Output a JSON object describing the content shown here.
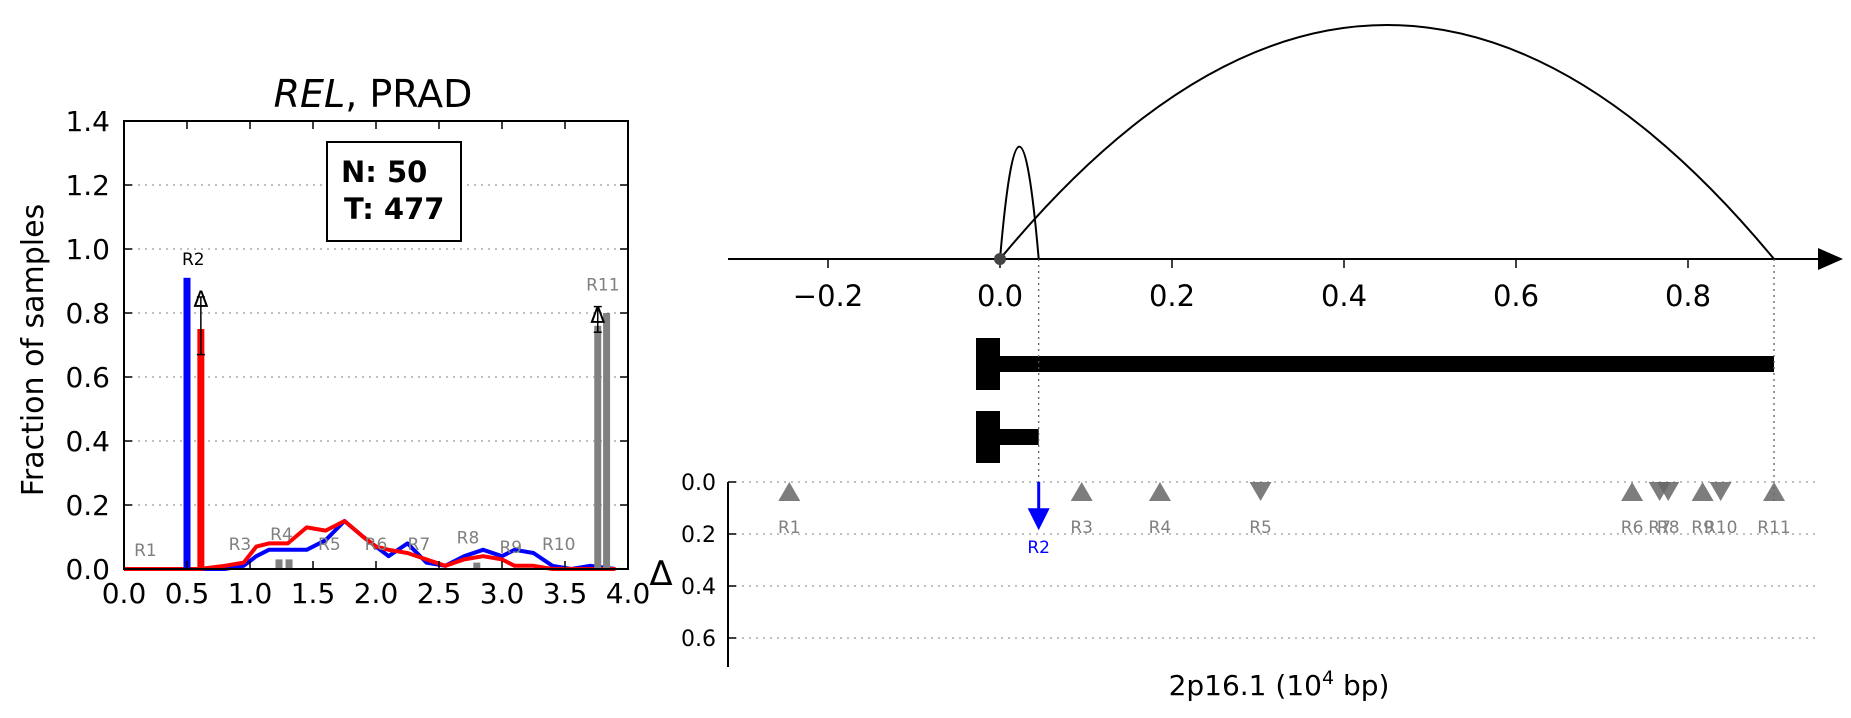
{
  "chart_data": [
    {
      "type": "line",
      "title_italic": "REL",
      "title_rest": ", PRAD",
      "ylabel": "Fraction of samples",
      "xlabel": "",
      "xlim": [
        0.0,
        4.0
      ],
      "ylim": [
        0.0,
        1.4
      ],
      "xticks": [
        "0.0",
        "0.5",
        "1.0",
        "1.5",
        "2.0",
        "2.5",
        "3.0",
        "3.5",
        "4.0"
      ],
      "yticks": [
        "0.0",
        "0.2",
        "0.4",
        "0.6",
        "0.8",
        "1.0",
        "1.2",
        "1.4"
      ],
      "grid": "horizontal dotted",
      "counts_box": {
        "line1": "N: 50",
        "line2": "T: 477"
      },
      "colors": {
        "normal": "#0000ff",
        "tumor": "#ff0000",
        "other": "#808080",
        "highlight_label": "#000000"
      },
      "bars": [
        {
          "x": 0.5,
          "value": 0.91,
          "color": "#0000ff"
        },
        {
          "x": 0.61,
          "value": 0.75,
          "color": "#ff0000",
          "err": [
            0.67,
            0.85
          ]
        },
        {
          "x": 1.23,
          "value": 0.03,
          "color": "#808080"
        },
        {
          "x": 1.31,
          "value": 0.03,
          "color": "#808080"
        },
        {
          "x": 2.8,
          "value": 0.02,
          "color": "#808080"
        },
        {
          "x": 3.76,
          "value": 0.76,
          "color": "#808080",
          "err": [
            0.74,
            0.82
          ]
        },
        {
          "x": 3.83,
          "value": 0.8,
          "color": "#808080"
        }
      ],
      "markers": [
        {
          "x": 0.61,
          "y": 0.85,
          "label": "Δ"
        },
        {
          "x": 3.76,
          "y": 0.8,
          "label": "Δ"
        }
      ],
      "series": [
        {
          "color": "#0000ff",
          "x": [
            0.0,
            0.45,
            0.6,
            0.8,
            0.95,
            1.05,
            1.15,
            1.3,
            1.45,
            1.6,
            1.75,
            1.9,
            2.0,
            2.1,
            2.25,
            2.4,
            2.55,
            2.7,
            2.85,
            3.0,
            3.1,
            3.25,
            3.4,
            3.55,
            3.7,
            3.9
          ],
          "y": [
            0.0,
            0.0,
            0.0,
            0.0,
            0.01,
            0.04,
            0.06,
            0.06,
            0.06,
            0.09,
            0.15,
            0.1,
            0.07,
            0.04,
            0.08,
            0.02,
            0.01,
            0.04,
            0.06,
            0.04,
            0.06,
            0.05,
            0.01,
            0.0,
            0.01,
            0.0
          ]
        },
        {
          "color": "#ff0000",
          "x": [
            0.0,
            0.45,
            0.6,
            0.8,
            0.95,
            1.05,
            1.15,
            1.3,
            1.45,
            1.6,
            1.75,
            1.9,
            2.0,
            2.1,
            2.25,
            2.4,
            2.55,
            2.7,
            2.85,
            3.0,
            3.1,
            3.25,
            3.4,
            3.55,
            3.7,
            3.9
          ],
          "y": [
            0.0,
            0.0,
            0.0,
            0.01,
            0.02,
            0.07,
            0.08,
            0.08,
            0.13,
            0.12,
            0.15,
            0.1,
            0.07,
            0.06,
            0.05,
            0.03,
            0.01,
            0.03,
            0.04,
            0.03,
            0.01,
            0.01,
            0.0,
            0.0,
            0.0,
            0.0
          ]
        }
      ],
      "region_labels": [
        {
          "label": "R1",
          "x": 0.17,
          "y": 0.04,
          "color": "#808080"
        },
        {
          "label": "R2",
          "x": 0.55,
          "y": 0.95,
          "color": "#000000"
        },
        {
          "label": "R3",
          "x": 0.92,
          "y": 0.06,
          "color": "#808080"
        },
        {
          "label": "R4",
          "x": 1.25,
          "y": 0.09,
          "color": "#808080"
        },
        {
          "label": "R5",
          "x": 1.63,
          "y": 0.06,
          "color": "#808080"
        },
        {
          "label": "R6",
          "x": 2.0,
          "y": 0.06,
          "color": "#808080"
        },
        {
          "label": "R7",
          "x": 2.34,
          "y": 0.06,
          "color": "#808080"
        },
        {
          "label": "R8",
          "x": 2.73,
          "y": 0.08,
          "color": "#808080"
        },
        {
          "label": "R9",
          "x": 3.07,
          "y": 0.05,
          "color": "#808080"
        },
        {
          "label": "R10",
          "x": 3.45,
          "y": 0.06,
          "color": "#808080"
        },
        {
          "label": "R11",
          "x": 3.8,
          "y": 0.87,
          "color": "#808080"
        }
      ]
    },
    {
      "type": "scatter",
      "xlabel_main": "2p16.1 (10",
      "xlabel_sup": "4",
      "xlabel_tail": " bp)",
      "xlim": [
        -0.3,
        0.95
      ],
      "xticks": [
        {
          "value": -0.2,
          "label": "−0.2"
        },
        {
          "value": 0.0,
          "label": "0.0"
        },
        {
          "value": 0.2,
          "label": "0.2"
        },
        {
          "value": 0.4,
          "label": "0.4"
        },
        {
          "value": 0.6,
          "label": "0.6"
        },
        {
          "value": 0.8,
          "label": "0.8"
        }
      ],
      "arcs": [
        {
          "from": 0.0,
          "to": 0.045,
          "height": 0.48
        },
        {
          "from": 0.0,
          "to": 0.9,
          "height": 1.0
        }
      ],
      "origin_point": 0.0,
      "transcripts": [
        {
          "start": 0.0,
          "end": 0.9
        },
        {
          "start": 0.0,
          "end": 0.045
        }
      ],
      "delta_ylabel": "Δ",
      "delta_ylim": [
        0.0,
        0.7
      ],
      "delta_yticks": [
        "0.0",
        "0.2",
        "0.4",
        "0.6"
      ],
      "highlight_color": "#0000ff",
      "marker_color": "#666666",
      "markers": [
        {
          "label": "R1",
          "x": -0.245,
          "dir": "up",
          "color": "#666666"
        },
        {
          "label": "R2",
          "x": 0.045,
          "dir": "arrow",
          "value": 0.17,
          "color": "#0000ff"
        },
        {
          "label": "R3",
          "x": 0.095,
          "dir": "up",
          "color": "#666666"
        },
        {
          "label": "R4",
          "x": 0.186,
          "dir": "up",
          "color": "#666666"
        },
        {
          "label": "R5",
          "x": 0.303,
          "dir": "down",
          "color": "#666666"
        },
        {
          "label": "R6",
          "x": 0.735,
          "dir": "up",
          "color": "#666666"
        },
        {
          "label": "R7",
          "x": 0.767,
          "dir": "down",
          "color": "#666666"
        },
        {
          "label": "R8",
          "x": 0.777,
          "dir": "down",
          "color": "#666666"
        },
        {
          "label": "R9",
          "x": 0.817,
          "dir": "up",
          "color": "#666666"
        },
        {
          "label": "R10",
          "x": 0.838,
          "dir": "down",
          "color": "#666666"
        },
        {
          "label": "R11",
          "x": 0.9,
          "dir": "up",
          "color": "#666666"
        }
      ]
    }
  ]
}
